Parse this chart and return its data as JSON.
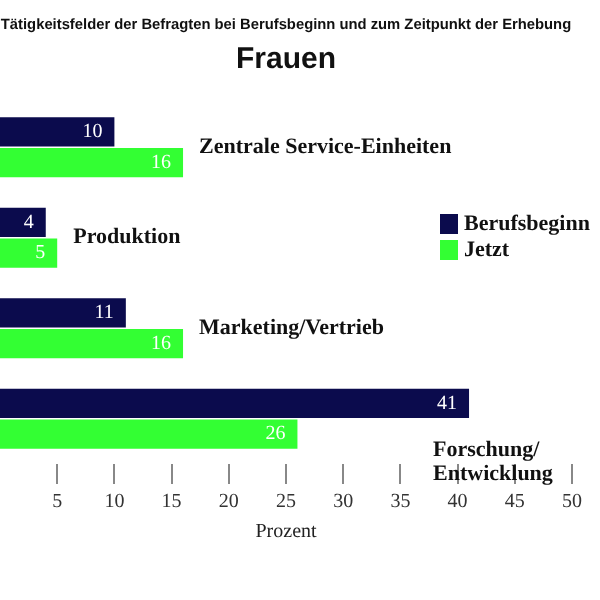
{
  "chart_data": {
    "type": "bar",
    "orientation": "horizontal",
    "title": "Tätigkeitsfelder der Befragten bei Berufsbeginn und zum Zeitpunkt der Erhebung",
    "subtitle": "Frauen",
    "xlabel": "Prozent",
    "categories": [
      "Zentrale Service-Einheiten",
      "Produktion",
      "Marketing/Vertrieb",
      "Forschung/ Entwicklung"
    ],
    "series": [
      {
        "name": "Berufsbeginn",
        "color": "#0b0b4d",
        "values": [
          10,
          4,
          11,
          41
        ]
      },
      {
        "name": "Jetzt",
        "color": "#33ff33",
        "values": [
          16,
          5,
          16,
          26
        ]
      }
    ],
    "xlim": [
      0,
      50
    ],
    "xticks": [
      5,
      10,
      15,
      20,
      25,
      30,
      35,
      40,
      45,
      50
    ],
    "data_labels": true,
    "legend": "right",
    "grid": false
  }
}
